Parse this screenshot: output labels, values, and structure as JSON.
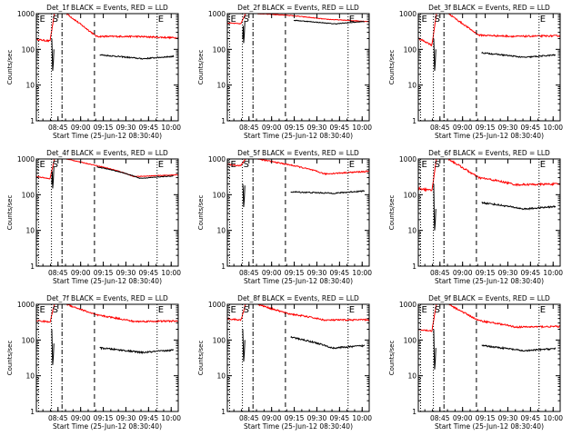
{
  "chart_data": {
    "type": "line",
    "y_scale": "log",
    "ylim": [
      1,
      1000
    ],
    "y_ticks": [
      {
        "v": 1,
        "label": "1"
      },
      {
        "v": 10,
        "label": "10"
      },
      {
        "v": 100,
        "label": "100"
      },
      {
        "v": 1000,
        "label": "1000"
      }
    ],
    "ylabel": "Counts/sec",
    "xlabel": "Start Time (25-Jun-12 08:30:40)",
    "x_units": "minutes since 08:30:40",
    "xlim": [
      0,
      94
    ],
    "x_ticks": [
      {
        "v": 14.33,
        "label": "08:45"
      },
      {
        "v": 29.33,
        "label": "09:00"
      },
      {
        "v": 44.33,
        "label": "09:15"
      },
      {
        "v": 59.33,
        "label": "09:30"
      },
      {
        "v": 74.33,
        "label": "09:45"
      },
      {
        "v": 89.33,
        "label": "10:00"
      }
    ],
    "markers": [
      {
        "v": 1.5,
        "style": "dotted",
        "label": "E"
      },
      {
        "v": 10.0,
        "style": "dotted",
        "label": "S"
      },
      {
        "v": 17.0,
        "style": "dashdot",
        "label": ""
      },
      {
        "v": 38.5,
        "style": "dashed",
        "label": ""
      },
      {
        "v": 80.0,
        "style": "dotted",
        "label": "E"
      }
    ],
    "series_legend": {
      "events_color": "#000000",
      "lld_color": "#ff0000"
    },
    "panels": [
      {
        "title": "Det_1f BLACK = Events, RED = LLD",
        "lld": {
          "start": 190,
          "pre": 170,
          "peak": 1000,
          "post": 230,
          "end": 210,
          "post_min": 230,
          "noise": 0.05
        },
        "events": {
          "show_from": 42,
          "post": 70,
          "end": 55,
          "dip": 25,
          "noise": 0.04
        }
      },
      {
        "title": "Det_2f BLACK = Events, RED = LLD",
        "lld": {
          "start": 550,
          "pre": 520,
          "peak": 1000,
          "post": 900,
          "end": 600,
          "post_min": 700,
          "noise": 0.02
        },
        "events": {
          "show_from": 44,
          "post": 650,
          "end": 520,
          "dip": 150,
          "noise": 0.02
        }
      },
      {
        "title": "Det_3f BLACK = Events, RED = LLD",
        "lld": {
          "start": 200,
          "pre": 130,
          "peak": 1000,
          "post": 250,
          "end": 240,
          "post_min": 230,
          "noise": 0.05
        },
        "events": {
          "show_from": 42,
          "post": 80,
          "end": 60,
          "dip": 25,
          "noise": 0.04
        }
      },
      {
        "title": "Det_4f BLACK = Events, RED = LLD",
        "lld": {
          "start": 320,
          "pre": 280,
          "peak": 1000,
          "post": 650,
          "end": 360,
          "post_min": 320,
          "noise": 0.02
        },
        "events": {
          "show_from": 40,
          "post": 600,
          "end": 290,
          "dip": 150,
          "noise": 0.02
        }
      },
      {
        "title": "Det_5f BLACK = Events, RED = LLD",
        "lld": {
          "start": 700,
          "pre": 650,
          "peak": 1000,
          "post": 700,
          "end": 450,
          "post_min": 380,
          "noise": 0.04
        },
        "events": {
          "show_from": 42,
          "post": 120,
          "end": 110,
          "dip": 45,
          "noise": 0.04
        }
      },
      {
        "title": "Det_6f BLACK = Events, RED = LLD",
        "lld": {
          "start": 150,
          "pre": 130,
          "peak": 1000,
          "post": 300,
          "end": 200,
          "post_min": 190,
          "noise": 0.06
        },
        "events": {
          "show_from": 42,
          "post": 60,
          "end": 40,
          "dip": 10,
          "noise": 0.05
        }
      },
      {
        "title": "Det_7f BLACK = Events, RED = LLD",
        "lld": {
          "start": 350,
          "pre": 320,
          "peak": 1000,
          "post": 500,
          "end": 340,
          "post_min": 330,
          "noise": 0.05
        },
        "events": {
          "show_from": 42,
          "post": 60,
          "end": 45,
          "dip": 20,
          "noise": 0.05
        }
      },
      {
        "title": "Det_8f BLACK = Events, RED = LLD",
        "lld": {
          "start": 400,
          "pre": 360,
          "peak": 1000,
          "post": 550,
          "end": 370,
          "post_min": 360,
          "noise": 0.05
        },
        "events": {
          "show_from": 42,
          "post": 120,
          "end": 60,
          "dip": 25,
          "noise": 0.05
        }
      },
      {
        "title": "Det_9f BLACK = Events, RED = LLD",
        "lld": {
          "start": 200,
          "pre": 180,
          "peak": 1000,
          "post": 350,
          "end": 240,
          "post_min": 230,
          "noise": 0.05
        },
        "events": {
          "show_from": 42,
          "post": 70,
          "end": 50,
          "dip": 15,
          "noise": 0.05
        }
      }
    ]
  }
}
